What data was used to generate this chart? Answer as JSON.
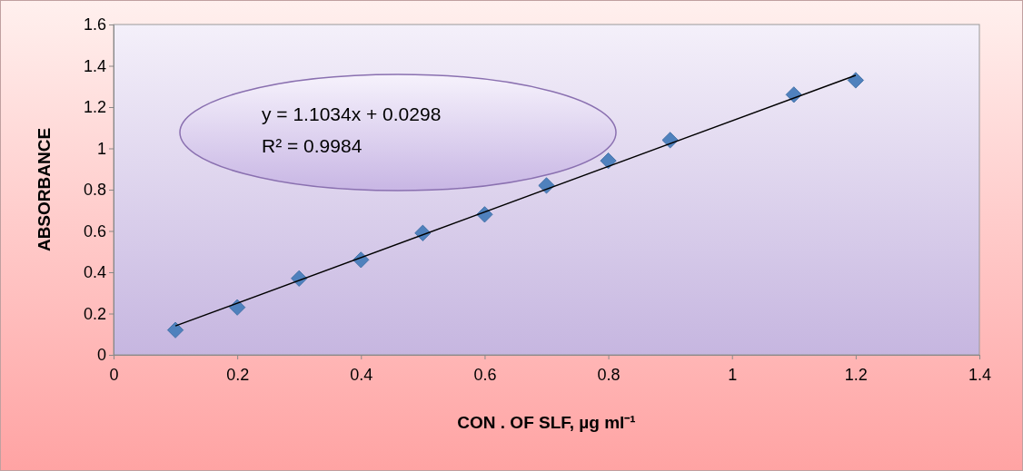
{
  "chart_data": {
    "type": "scatter",
    "xlabel": "CON . OF SLF, µg ml⁻¹",
    "ylabel": "ABSORBANCE",
    "x": [
      0.1,
      0.2,
      0.3,
      0.4,
      0.5,
      0.6,
      0.7,
      0.8,
      0.9,
      1.1,
      1.2
    ],
    "series": [
      {
        "marker": "diamond",
        "color": "#4f81bd",
        "values": [
          0.12,
          0.23,
          0.37,
          0.46,
          0.59,
          0.68,
          0.82,
          0.94,
          1.04,
          1.26,
          1.33
        ]
      },
      {
        "type": "line",
        "color": "#000000",
        "x": [
          0.1,
          1.2
        ],
        "values": [
          0.14,
          1.354
        ]
      }
    ],
    "grid": false,
    "xlim": [
      0,
      1.4
    ],
    "xticks": [
      0,
      0.2,
      0.4,
      0.6,
      0.8,
      1,
      1.2,
      1.4
    ],
    "ylim": [
      0,
      1.6
    ],
    "yticks": [
      0,
      0.2,
      0.4,
      0.6,
      0.8,
      1,
      1.2,
      1.4,
      1.6
    ],
    "annotations": [
      "y = 1.1034x + 0.0298",
      "R² = 0.9984"
    ]
  }
}
